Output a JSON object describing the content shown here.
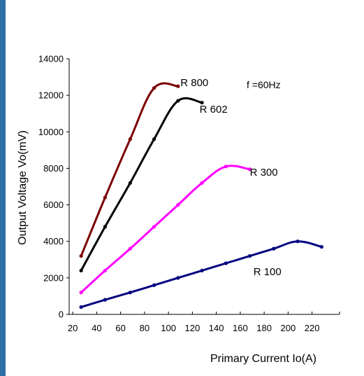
{
  "chart_data": {
    "type": "line",
    "title": "",
    "xlabel": "Primary Current Io(A)",
    "ylabel": "Output Voltage Vo(mV)",
    "xlim": [
      17,
      243
    ],
    "ylim": [
      0,
      14000
    ],
    "xticks": [
      "20",
      "40",
      "60",
      "80",
      "100",
      "120",
      "140",
      "160",
      "180",
      "200",
      "220"
    ],
    "yticks": [
      "0",
      "2000",
      "4000",
      "6000",
      "8000",
      "10000",
      "12000",
      "14000"
    ],
    "grid": false,
    "legend": "none",
    "annotation": "f =60Hz",
    "series": [
      {
        "name": "R 800",
        "color": "#7b0000",
        "x": [
          27,
          47,
          68,
          88,
          108
        ],
        "y": [
          3200,
          6400,
          9600,
          12400,
          12500
        ],
        "label_at": [
          110,
          12500
        ]
      },
      {
        "name": "R 602",
        "color": "#000000",
        "x": [
          27,
          47,
          68,
          88,
          108,
          128
        ],
        "y": [
          2400,
          4800,
          7200,
          9600,
          11700,
          11600
        ],
        "label_at": [
          126,
          11050
        ]
      },
      {
        "name": "R 300",
        "color": "#ff00ff",
        "x": [
          27,
          47,
          68,
          88,
          108,
          128,
          148,
          168
        ],
        "y": [
          1200,
          2400,
          3600,
          4800,
          6000,
          7200,
          8100,
          7950
        ],
        "label_at": [
          168,
          7600
        ]
      },
      {
        "name": "R 100",
        "color": "#000080",
        "x": [
          27,
          47,
          68,
          88,
          108,
          128,
          148,
          168,
          188,
          208,
          228
        ],
        "y": [
          400,
          800,
          1200,
          1600,
          2000,
          2400,
          2800,
          3200,
          3600,
          4000,
          3700
        ],
        "label_at": [
          171,
          2150
        ]
      }
    ]
  }
}
